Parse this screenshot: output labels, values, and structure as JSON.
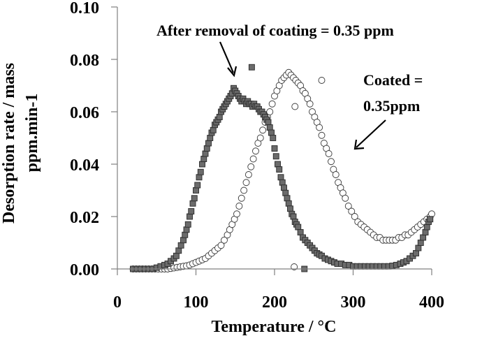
{
  "chart_data": {
    "type": "scatter",
    "title": "",
    "xlabel": "Temperature / °C",
    "ylabel_lines": [
      "Desorption rate / mass",
      "ppm.min-1"
    ],
    "xlim": [
      0,
      400
    ],
    "ylim": [
      0.0,
      0.1
    ],
    "x_ticks": [
      0,
      100,
      200,
      300,
      400
    ],
    "x_tick_labels": [
      "0",
      "100",
      "200",
      "300",
      "400"
    ],
    "y_ticks": [
      0.0,
      0.02,
      0.04,
      0.06,
      0.08,
      0.1
    ],
    "y_tick_labels": [
      "0.00",
      "0.02",
      "0.04",
      "0.06",
      "0.08",
      "0.10"
    ],
    "grid": false,
    "legend": "none",
    "colors": {
      "square_fill": "#6b6b6b",
      "square_edge": "#2a2a2a",
      "circle_fill": "#ffffff",
      "circle_edge": "#3a3a3a",
      "axis": "#808080"
    },
    "annotations": [
      {
        "name": "after-removal-label",
        "text": "After removal of coating = 0.35 ppm",
        "points_to_series": "after_removal"
      },
      {
        "name": "coated-label",
        "lines": [
          "Coated =",
          "0.35ppm"
        ],
        "points_to_series": "coated"
      }
    ],
    "series": [
      {
        "name": "after_removal",
        "label": "After removal of coating = 0.35 ppm",
        "marker": "square",
        "x": [
          20,
          25,
          30,
          35,
          40,
          45,
          50,
          55,
          60,
          64,
          68,
          72,
          75,
          78,
          81,
          84,
          86,
          88,
          90,
          92,
          94,
          96,
          98,
          100,
          102,
          104,
          106,
          108,
          110,
          112,
          114,
          116,
          118,
          120,
          122,
          124,
          126,
          128,
          130,
          132,
          134,
          136,
          138,
          140,
          142,
          144,
          146,
          148,
          150,
          152,
          154,
          156,
          158,
          160,
          162,
          164,
          166,
          168,
          170,
          171,
          172,
          174,
          176,
          178,
          180,
          182,
          184,
          186,
          188,
          190,
          192,
          194,
          196,
          198,
          200,
          202,
          204,
          206,
          208,
          210,
          212,
          214,
          216,
          218,
          220,
          222,
          224,
          226,
          228,
          230,
          233,
          236,
          239,
          242,
          245,
          248,
          251,
          254,
          257,
          260,
          264,
          268,
          272,
          276,
          280,
          285,
          290,
          295,
          300,
          305,
          310,
          315,
          320,
          325,
          330,
          335,
          340,
          345,
          350,
          355,
          360,
          364,
          368,
          372,
          376,
          380,
          383,
          386,
          389,
          392,
          394,
          396,
          398,
          238
        ],
        "y": [
          0.0,
          0.0,
          0.0,
          0.0,
          0.0,
          0.0,
          0.0005,
          0.001,
          0.0015,
          0.002,
          0.003,
          0.004,
          0.005,
          0.007,
          0.009,
          0.011,
          0.013,
          0.015,
          0.017,
          0.02,
          0.022,
          0.025,
          0.027,
          0.03,
          0.032,
          0.035,
          0.037,
          0.04,
          0.042,
          0.044,
          0.046,
          0.048,
          0.05,
          0.052,
          0.053,
          0.055,
          0.056,
          0.057,
          0.058,
          0.06,
          0.061,
          0.062,
          0.063,
          0.064,
          0.065,
          0.066,
          0.067,
          0.069,
          0.068,
          0.067,
          0.066,
          0.065,
          0.064,
          0.065,
          0.064,
          0.063,
          0.064,
          0.063,
          0.063,
          0.077,
          0.062,
          0.063,
          0.062,
          0.062,
          0.061,
          0.06,
          0.06,
          0.059,
          0.058,
          0.057,
          0.056,
          0.054,
          0.052,
          0.05,
          0.046,
          0.043,
          0.04,
          0.038,
          0.035,
          0.033,
          0.031,
          0.029,
          0.027,
          0.025,
          0.023,
          0.021,
          0.02,
          0.018,
          0.017,
          0.016,
          0.014,
          0.012,
          0.011,
          0.01,
          0.009,
          0.008,
          0.007,
          0.006,
          0.0055,
          0.005,
          0.004,
          0.0035,
          0.003,
          0.0025,
          0.002,
          0.002,
          0.0015,
          0.0015,
          0.001,
          0.001,
          0.001,
          0.001,
          0.001,
          0.001,
          0.001,
          0.001,
          0.001,
          0.001,
          0.0012,
          0.0015,
          0.002,
          0.0025,
          0.003,
          0.004,
          0.005,
          0.006,
          0.008,
          0.01,
          0.012,
          0.014,
          0.016,
          0.018,
          0.019,
          0.0
        ]
      },
      {
        "name": "coated",
        "label": "Coated = 0.35ppm",
        "marker": "circle",
        "x": [
          20,
          24,
          28,
          32,
          36,
          40,
          44,
          48,
          52,
          56,
          60,
          64,
          68,
          72,
          76,
          80,
          84,
          88,
          92,
          96,
          100,
          104,
          108,
          112,
          116,
          120,
          124,
          128,
          132,
          136,
          140,
          143,
          146,
          149,
          152,
          155,
          158,
          161,
          164,
          167,
          170,
          173,
          176,
          179,
          182,
          185,
          188,
          191,
          194,
          197,
          200,
          203,
          206,
          209,
          212,
          215,
          218,
          221,
          224,
          227,
          230,
          233,
          236,
          239,
          242,
          245,
          248,
          251,
          254,
          257,
          260,
          263,
          266,
          269,
          272,
          275,
          278,
          281,
          284,
          287,
          290,
          294,
          298,
          302,
          306,
          310,
          314,
          318,
          322,
          326,
          330,
          334,
          338,
          342,
          346,
          350,
          354,
          358,
          362,
          366,
          370,
          374,
          378,
          382,
          386,
          390,
          394,
          398,
          400,
          225,
          226,
          260
        ],
        "y": [
          0.0,
          0.0,
          0.0,
          0.0,
          0.0,
          0.0,
          0.0,
          0.0,
          0.0,
          0.0,
          0.0,
          0.0,
          0.0002,
          0.0004,
          0.0006,
          0.0008,
          0.001,
          0.0012,
          0.0015,
          0.002,
          0.0025,
          0.003,
          0.0035,
          0.004,
          0.005,
          0.006,
          0.007,
          0.008,
          0.009,
          0.011,
          0.013,
          0.015,
          0.017,
          0.019,
          0.021,
          0.024,
          0.027,
          0.03,
          0.033,
          0.036,
          0.039,
          0.042,
          0.045,
          0.048,
          0.05,
          0.053,
          0.056,
          0.058,
          0.06,
          0.063,
          0.066,
          0.068,
          0.07,
          0.072,
          0.073,
          0.074,
          0.075,
          0.074,
          0.073,
          0.072,
          0.071,
          0.07,
          0.068,
          0.067,
          0.065,
          0.063,
          0.06,
          0.058,
          0.056,
          0.054,
          0.051,
          0.048,
          0.046,
          0.044,
          0.041,
          0.038,
          0.036,
          0.033,
          0.031,
          0.029,
          0.027,
          0.024,
          0.022,
          0.02,
          0.018,
          0.017,
          0.016,
          0.015,
          0.014,
          0.013,
          0.012,
          0.012,
          0.011,
          0.011,
          0.011,
          0.011,
          0.011,
          0.012,
          0.012,
          0.013,
          0.013,
          0.014,
          0.015,
          0.016,
          0.017,
          0.018,
          0.019,
          0.02,
          0.021,
          0.0008,
          0.062,
          0.072
        ]
      }
    ]
  }
}
